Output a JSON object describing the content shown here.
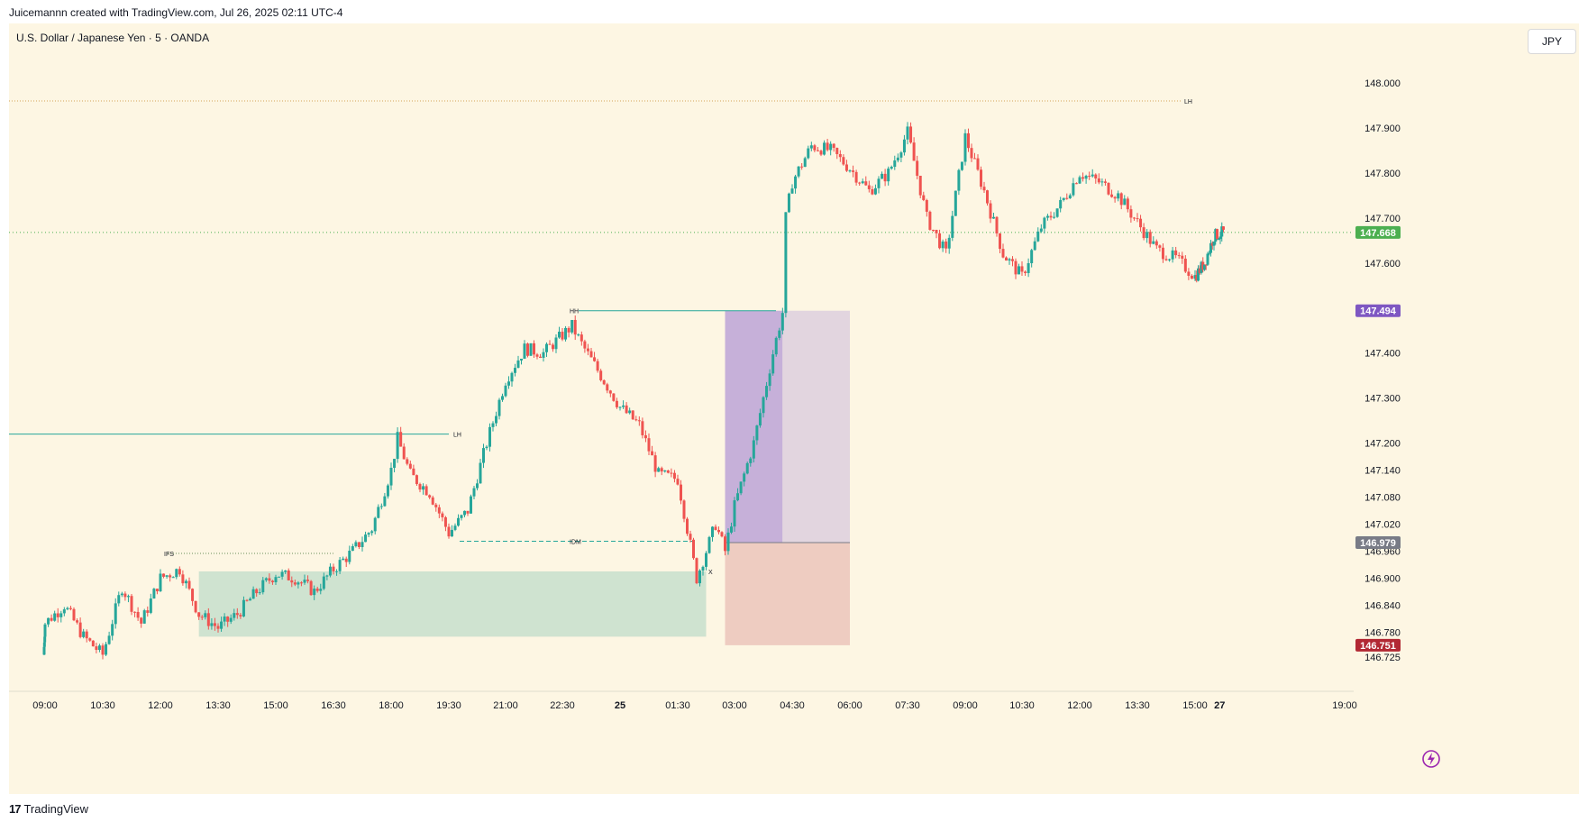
{
  "header": {
    "caption": "Juicemannn created with TradingView.com, Jul 26, 2025 02:11 UTC-4"
  },
  "symbol": {
    "title": "U.S. Dollar / Japanese Yen · 5 · OANDA",
    "currency": "JPY"
  },
  "footer": {
    "brand": "TradingView",
    "logo_icon": "tradingview-logo-icon"
  },
  "colors": {
    "background": "#fdf6e3",
    "up": "#26a69a",
    "down": "#ef5350",
    "demand_zone": "#cfe3d0",
    "entry_zone": "#c6b0d9",
    "target_zone": "#e2d5df",
    "stop_zone": "#eeccc1",
    "level_line": "#26a69a",
    "current_price": "#4caf50",
    "marker_purple": "#7e57c2",
    "marker_grey": "#787b86",
    "marker_red": "#b22833"
  },
  "chart_data": {
    "type": "candlestick",
    "title": "U.S. Dollar / Japanese Yen · 5 · OANDA",
    "y_axis": {
      "ticks": [
        "148.000",
        "147.900",
        "147.800",
        "147.700",
        "147.600",
        "147.400",
        "147.300",
        "147.200",
        "147.140",
        "147.080",
        "147.020",
        "146.960",
        "146.900",
        "146.840",
        "146.780",
        "146.725"
      ],
      "range": [
        146.7,
        148.1
      ]
    },
    "x_axis": {
      "ticks": [
        "09:00",
        "10:30",
        "12:00",
        "13:30",
        "15:00",
        "16:30",
        "18:00",
        "19:30",
        "21:00",
        "22:30",
        "25",
        "01:30",
        "03:00",
        "04:30",
        "06:00",
        "07:30",
        "09:00",
        "10:30",
        "12:00",
        "13:30",
        "15:00",
        "27",
        "19:00"
      ]
    },
    "price_markers": [
      {
        "label": "147.668",
        "value": 147.668,
        "color": "#4caf50"
      },
      {
        "label": "147.494",
        "value": 147.494,
        "color": "#7e57c2"
      },
      {
        "label": "146.979",
        "value": 146.979,
        "color": "#787b86"
      },
      {
        "label": "146.751",
        "value": 146.751,
        "color": "#b22833"
      }
    ],
    "annotations": [
      {
        "text": "LH",
        "price": 147.96
      },
      {
        "text": "LH",
        "price": 147.22
      },
      {
        "text": "HH",
        "price": 147.494
      },
      {
        "text": "IDM",
        "price": 146.982
      },
      {
        "text": "IFS",
        "price": 146.955
      },
      {
        "text": "X",
        "price": 146.915
      }
    ],
    "path_anchors": [
      {
        "t": "08:40",
        "price": 146.73
      },
      {
        "t": "09:00",
        "price": 146.8
      },
      {
        "t": "09:30",
        "price": 146.84
      },
      {
        "t": "10:00",
        "price": 146.77
      },
      {
        "t": "10:30",
        "price": 146.73
      },
      {
        "t": "11:00",
        "price": 146.88
      },
      {
        "t": "11:30",
        "price": 146.8
      },
      {
        "t": "12:00",
        "price": 146.9
      },
      {
        "t": "12:30",
        "price": 146.92
      },
      {
        "t": "13:00",
        "price": 146.82
      },
      {
        "t": "13:30",
        "price": 146.79
      },
      {
        "t": "14:00",
        "price": 146.82
      },
      {
        "t": "14:30",
        "price": 146.87
      },
      {
        "t": "15:00",
        "price": 146.91
      },
      {
        "t": "15:30",
        "price": 146.9
      },
      {
        "t": "16:00",
        "price": 146.87
      },
      {
        "t": "16:30",
        "price": 146.92
      },
      {
        "t": "17:00",
        "price": 146.96
      },
      {
        "t": "17:30",
        "price": 147.01
      },
      {
        "t": "18:00",
        "price": 147.14
      },
      {
        "t": "18:10",
        "price": 147.21
      },
      {
        "t": "18:30",
        "price": 147.13
      },
      {
        "t": "19:00",
        "price": 147.09
      },
      {
        "t": "19:30",
        "price": 147.0
      },
      {
        "t": "20:00",
        "price": 147.05
      },
      {
        "t": "20:30",
        "price": 147.2
      },
      {
        "t": "21:00",
        "price": 147.34
      },
      {
        "t": "21:30",
        "price": 147.41
      },
      {
        "t": "22:00",
        "price": 147.4
      },
      {
        "t": "22:30",
        "price": 147.44
      },
      {
        "t": "22:45",
        "price": 147.46
      },
      {
        "t": "23:00",
        "price": 147.42
      },
      {
        "t": "23:30",
        "price": 147.35
      },
      {
        "t": "00:00",
        "price": 147.28
      },
      {
        "t": "00:30",
        "price": 147.24
      },
      {
        "t": "01:00",
        "price": 147.13
      },
      {
        "t": "01:30",
        "price": 147.12
      },
      {
        "t": "02:00",
        "price": 146.9
      },
      {
        "t": "02:30",
        "price": 147.02
      },
      {
        "t": "02:45",
        "price": 146.96
      },
      {
        "t": "03:00",
        "price": 147.06
      },
      {
        "t": "03:30",
        "price": 147.2
      },
      {
        "t": "04:00",
        "price": 147.4
      },
      {
        "t": "04:15",
        "price": 147.49
      },
      {
        "t": "04:20",
        "price": 147.7
      },
      {
        "t": "04:30",
        "price": 147.78
      },
      {
        "t": "05:00",
        "price": 147.86
      },
      {
        "t": "05:30",
        "price": 147.85
      },
      {
        "t": "06:00",
        "price": 147.81
      },
      {
        "t": "06:30",
        "price": 147.76
      },
      {
        "t": "07:00",
        "price": 147.8
      },
      {
        "t": "07:30",
        "price": 147.89
      },
      {
        "t": "08:00",
        "price": 147.7
      },
      {
        "t": "08:30",
        "price": 147.62
      },
      {
        "t": "09:00",
        "price": 147.88
      },
      {
        "t": "09:30",
        "price": 147.76
      },
      {
        "t": "10:00",
        "price": 147.62
      },
      {
        "t": "10:30",
        "price": 147.57
      },
      {
        "t": "11:00",
        "price": 147.68
      },
      {
        "t": "11:30",
        "price": 147.73
      },
      {
        "t": "12:00",
        "price": 147.8
      },
      {
        "t": "12:30",
        "price": 147.78
      },
      {
        "t": "13:00",
        "price": 147.75
      },
      {
        "t": "13:30",
        "price": 147.69
      },
      {
        "t": "14:00",
        "price": 147.63
      },
      {
        "t": "14:30",
        "price": 147.61
      },
      {
        "t": "15:00",
        "price": 147.57
      },
      {
        "t": "15:30",
        "price": 147.6
      },
      {
        "t": "16:00",
        "price": 147.66
      },
      {
        "t": "16:30",
        "price": 147.668
      }
    ],
    "zones": [
      {
        "name": "demand",
        "from": "13:00",
        "to": "02:15",
        "low": 146.77,
        "high": 146.915
      },
      {
        "name": "entry",
        "from": "02:45",
        "to": "04:15",
        "low": 146.979,
        "high": 147.494
      },
      {
        "name": "target",
        "from": "04:15",
        "to": "06:00",
        "low": 146.979,
        "high": 147.494
      },
      {
        "name": "stop",
        "from": "02:45",
        "to": "06:00",
        "low": 146.751,
        "high": 146.979
      }
    ],
    "legend": "none",
    "grid": false
  }
}
